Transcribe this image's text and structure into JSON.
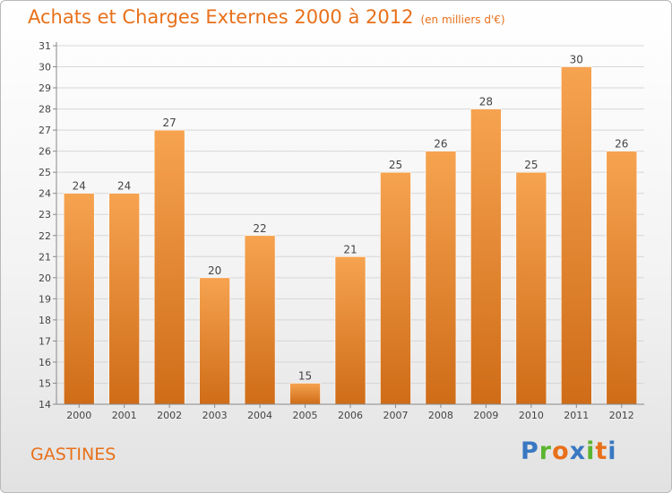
{
  "title": "Achats et Charges Externes 2000 à 2012",
  "subtitle": "(en milliers d'€)",
  "commune": "GASTINES",
  "logo": {
    "text": "Proxiti",
    "letters": [
      "P",
      "r",
      "o",
      "x",
      "i",
      "t",
      "i"
    ],
    "colors": [
      "#3a78c2",
      "#5cb531",
      "#e8701a",
      "#3a78c2",
      "#5cb531",
      "#e8701a",
      "#3a78c2"
    ]
  },
  "colors": {
    "accent": "#e8701a",
    "bar_top": "#f6a350",
    "bar_bottom": "#cf6c18"
  },
  "chart_data": {
    "type": "bar",
    "categories": [
      "2000",
      "2001",
      "2002",
      "2003",
      "2004",
      "2005",
      "2006",
      "2007",
      "2008",
      "2009",
      "2010",
      "2011",
      "2012"
    ],
    "values": [
      24,
      24,
      27,
      20,
      22,
      15,
      21,
      25,
      26,
      28,
      25,
      30,
      26
    ],
    "ylim": [
      14,
      31
    ],
    "yticks": [
      14,
      15,
      16,
      17,
      18,
      19,
      20,
      21,
      22,
      23,
      24,
      25,
      26,
      27,
      28,
      29,
      30,
      31
    ],
    "grid": true,
    "xlabel": "",
    "ylabel": ""
  }
}
